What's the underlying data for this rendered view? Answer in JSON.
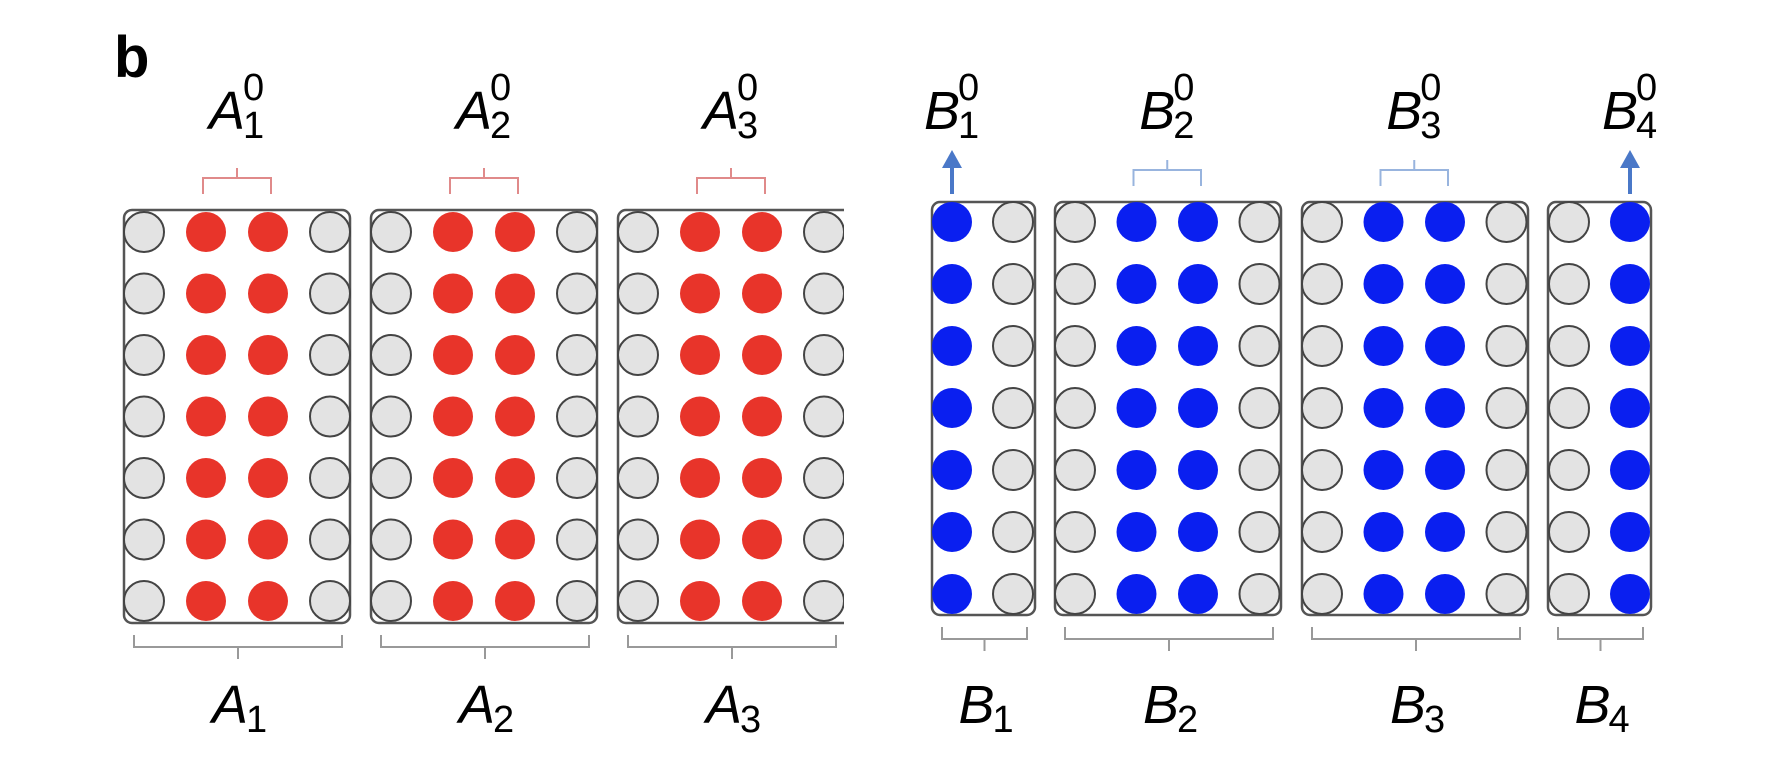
{
  "panel_label": "b",
  "colors": {
    "group_a": "#e8342a",
    "group_b": "#0a1ff0",
    "empty": "#e3e3e3",
    "brace_a": "#e08a8a",
    "brace_b": "#98b4de",
    "arrow": "#4a78c8",
    "bottom_brace": "#999999"
  },
  "groups": [
    {
      "id": "A",
      "color_key": "group_a",
      "blocks": [
        {
          "bottom_label": {
            "base": "A",
            "sub": "1"
          },
          "top_label": {
            "base": "A",
            "sup": "0",
            "sub": "1"
          },
          "columns": 4,
          "rows": 7,
          "filled_columns": [
            1,
            2
          ],
          "top_marker": "brace"
        },
        {
          "bottom_label": {
            "base": "A",
            "sub": "2"
          },
          "top_label": {
            "base": "A",
            "sup": "0",
            "sub": "2"
          },
          "columns": 4,
          "rows": 7,
          "filled_columns": [
            1,
            2
          ],
          "top_marker": "brace"
        },
        {
          "bottom_label": {
            "base": "A",
            "sub": "3"
          },
          "top_label": {
            "base": "A",
            "sup": "0",
            "sub": "3"
          },
          "columns": 4,
          "rows": 7,
          "filled_columns": [
            1,
            2
          ],
          "top_marker": "brace"
        }
      ]
    },
    {
      "id": "B",
      "color_key": "group_b",
      "blocks": [
        {
          "bottom_label": {
            "base": "B",
            "sub": "1"
          },
          "top_label": {
            "base": "B",
            "sup": "0",
            "sub": "1"
          },
          "columns": 2,
          "rows": 7,
          "filled_columns": [
            0
          ],
          "top_marker": "arrow"
        },
        {
          "bottom_label": {
            "base": "B",
            "sub": "2"
          },
          "top_label": {
            "base": "B",
            "sup": "0",
            "sub": "2"
          },
          "columns": 4,
          "rows": 7,
          "filled_columns": [
            1,
            2
          ],
          "top_marker": "brace"
        },
        {
          "bottom_label": {
            "base": "B",
            "sub": "3"
          },
          "top_label": {
            "base": "B",
            "sup": "0",
            "sub": "3"
          },
          "columns": 4,
          "rows": 7,
          "filled_columns": [
            1,
            2
          ],
          "top_marker": "brace"
        },
        {
          "bottom_label": {
            "base": "B",
            "sub": "4"
          },
          "top_label": {
            "base": "B",
            "sup": "0",
            "sub": "4"
          },
          "columns": 2,
          "rows": 7,
          "filled_columns": [
            1
          ],
          "top_marker": "arrow"
        }
      ]
    }
  ]
}
